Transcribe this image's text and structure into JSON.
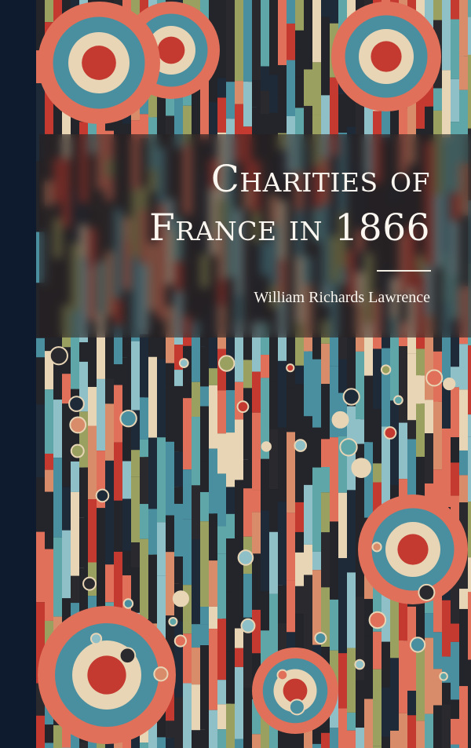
{
  "cover": {
    "title_line1": "Charities of",
    "title_line2": "France in 1866",
    "author": "William Richards Lawrence"
  },
  "colors": {
    "spine": "#0e1a2d",
    "palette": [
      "#e0705a",
      "#4a8fa0",
      "#1e2a38",
      "#e8d5b5",
      "#c43a30",
      "#8fc0c8",
      "#9aa060",
      "#2a2a2e",
      "#d98c6a",
      "#5fa6a8"
    ]
  }
}
